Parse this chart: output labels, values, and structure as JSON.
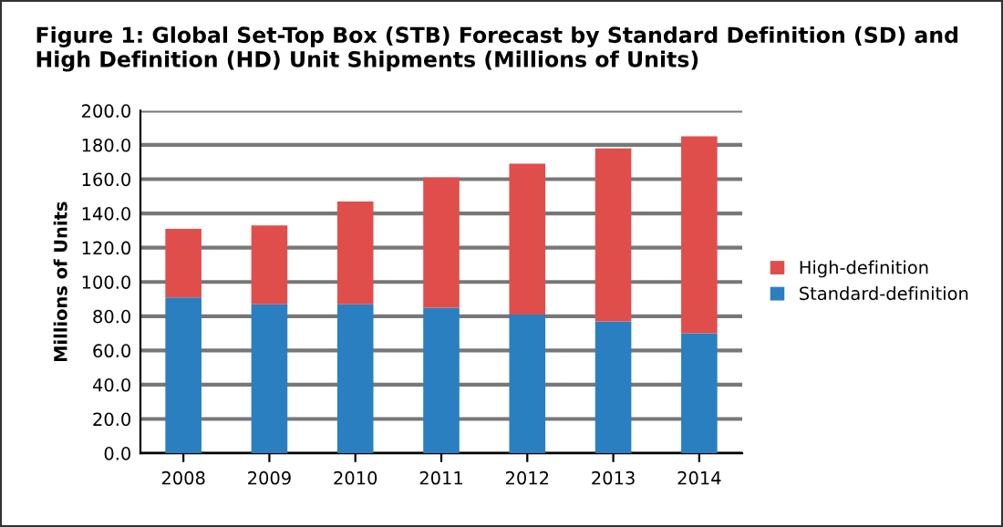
{
  "chart_data": {
    "type": "bar",
    "title": "Figure 1: Global Set-Top Box (STB) Forecast by Standard Definition (SD) and High Definition (HD) Unit Shipments (Millions of Units)",
    "ylabel": "Millions of Units",
    "categories": [
      "2008",
      "2009",
      "2010",
      "2011",
      "2012",
      "2013",
      "2014"
    ],
    "stacked": true,
    "series": [
      {
        "name": "Standard-definition",
        "color": "#2a7fc1",
        "values": [
          91,
          87,
          87,
          85,
          81,
          77,
          70
        ]
      },
      {
        "name": "High-definition",
        "color": "#e04e4b",
        "values": [
          40,
          46,
          60,
          76,
          88,
          101,
          115
        ]
      }
    ],
    "ylim": [
      0,
      200
    ],
    "yticks": [
      {
        "value": 0,
        "label": "0.0"
      },
      {
        "value": 20,
        "label": "20.0"
      },
      {
        "value": 40,
        "label": "40.0"
      },
      {
        "value": 60,
        "label": "60.0"
      },
      {
        "value": 80,
        "label": "80.0"
      },
      {
        "value": 100,
        "label": "100.0"
      },
      {
        "value": 120,
        "label": "120.0"
      },
      {
        "value": 140,
        "label": "140.0"
      },
      {
        "value": 160,
        "label": "160.0"
      },
      {
        "value": 180,
        "label": "180.0"
      },
      {
        "value": 200,
        "label": "200.0"
      }
    ],
    "grid": "y",
    "legend": "right"
  }
}
